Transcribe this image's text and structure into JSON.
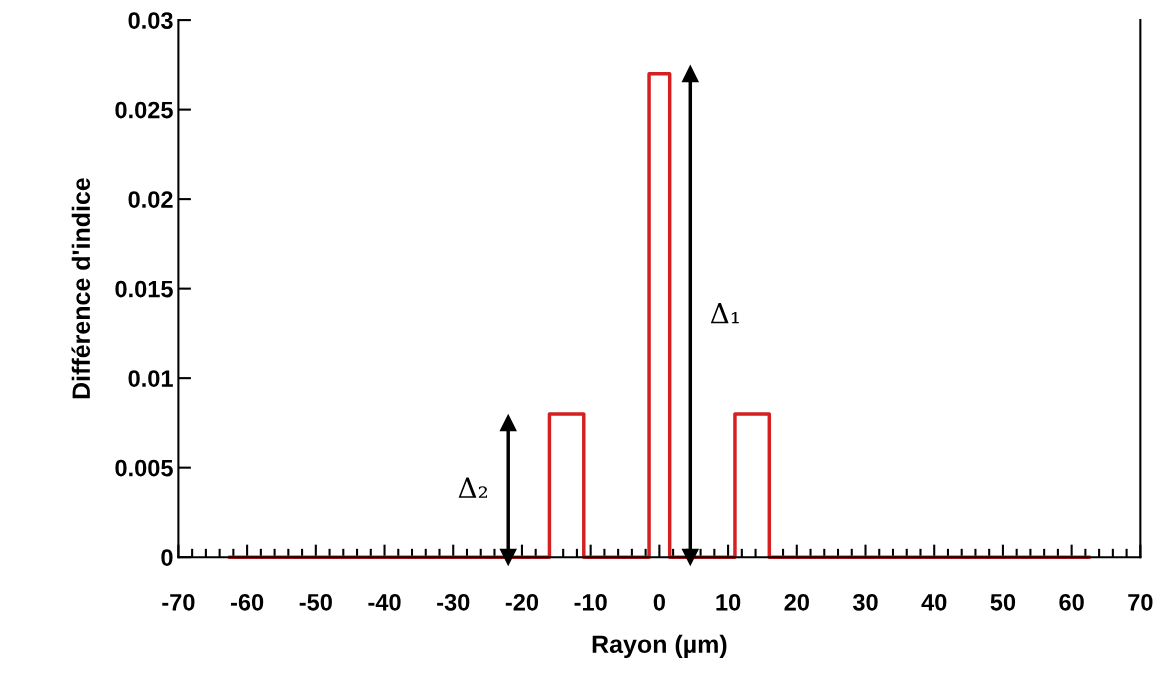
{
  "chart_data": {
    "type": "line",
    "xlabel": "Rayon (µm)",
    "ylabel": "Différence d'indice",
    "series": [
      {
        "color": "#d42020",
        "x": [
          -62.5,
          -16,
          -16,
          -11,
          -11,
          -1.5,
          -1.5,
          1.5,
          1.5,
          11,
          11,
          16,
          16,
          62.5
        ],
        "values": [
          0,
          0,
          0.008,
          0.008,
          0,
          0,
          0.027,
          0.027,
          0,
          0,
          0.008,
          0.008,
          0,
          0
        ]
      },
      {
        "color": "#000000",
        "marker": "triangle",
        "x": [
          4.5,
          4.5
        ],
        "values": [
          0,
          0.027
        ]
      },
      {
        "color": "#000000",
        "marker": "triangle",
        "x": [
          -22,
          -22
        ],
        "values": [
          0,
          0.0075
        ]
      }
    ],
    "xlim": [
      -70,
      70
    ],
    "xticks": [
      -70,
      -60,
      -50,
      -40,
      -30,
      -20,
      -10,
      0,
      10,
      20,
      30,
      40,
      50,
      60,
      70
    ],
    "ylim": [
      0,
      0.03
    ],
    "yticks": [
      0,
      0.005,
      0.01,
      0.015,
      0.02,
      0.025,
      0.03
    ],
    "grid": false,
    "legend": false,
    "marker": "none",
    "line_style": "solid",
    "annotations": [
      "Δ₁",
      "Δ₂"
    ]
  }
}
